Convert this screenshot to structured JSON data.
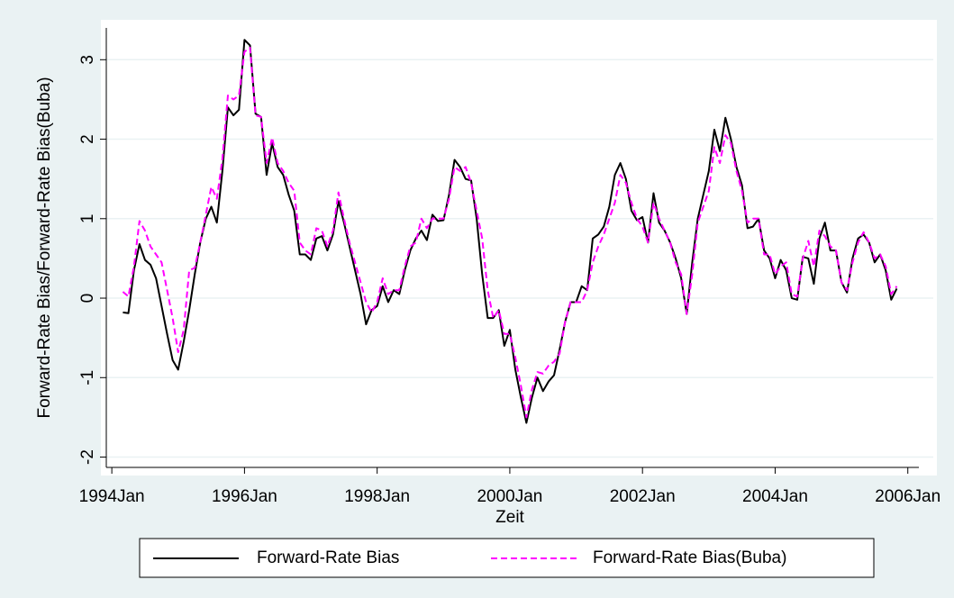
{
  "chart_data": {
    "type": "line",
    "x_label": "Zeit",
    "y_label": "Forward-Rate Bias/Forward-Rate Bias(Buba)",
    "x": [
      "1994-03",
      "1994-04",
      "1994-05",
      "1994-06",
      "1994-07",
      "1994-08",
      "1994-09",
      "1994-10",
      "1994-11",
      "1994-12",
      "1995-01",
      "1995-02",
      "1995-03",
      "1995-04",
      "1995-05",
      "1995-06",
      "1995-07",
      "1995-08",
      "1995-09",
      "1995-10",
      "1995-11",
      "1995-12",
      "1996-01",
      "1996-02",
      "1996-03",
      "1996-04",
      "1996-05",
      "1996-06",
      "1996-07",
      "1996-08",
      "1996-09",
      "1996-10",
      "1996-11",
      "1996-12",
      "1997-01",
      "1997-02",
      "1997-03",
      "1997-04",
      "1997-05",
      "1997-06",
      "1997-07",
      "1997-08",
      "1997-09",
      "1997-10",
      "1997-11",
      "1997-12",
      "1998-01",
      "1998-02",
      "1998-03",
      "1998-04",
      "1998-05",
      "1998-06",
      "1998-07",
      "1998-08",
      "1998-09",
      "1998-10",
      "1998-11",
      "1998-12",
      "1999-01",
      "1999-02",
      "1999-03",
      "1999-04",
      "1999-05",
      "1999-06",
      "1999-07",
      "1999-08",
      "1999-09",
      "1999-10",
      "1999-11",
      "1999-12",
      "2000-01",
      "2000-02",
      "2000-03",
      "2000-04",
      "2000-05",
      "2000-06",
      "2000-07",
      "2000-08",
      "2000-09",
      "2000-10",
      "2000-11",
      "2000-12",
      "2001-01",
      "2001-02",
      "2001-03",
      "2001-04",
      "2001-05",
      "2001-06",
      "2001-07",
      "2001-08",
      "2001-09",
      "2001-10",
      "2001-11",
      "2001-12",
      "2002-01",
      "2002-02",
      "2002-03",
      "2002-04",
      "2002-05",
      "2002-06",
      "2002-07",
      "2002-08",
      "2002-09",
      "2002-10",
      "2002-11",
      "2002-12",
      "2003-01",
      "2003-02",
      "2003-03",
      "2003-04",
      "2003-05",
      "2003-06",
      "2003-07",
      "2003-08",
      "2003-09",
      "2003-10",
      "2003-11",
      "2003-12",
      "2004-01",
      "2004-02",
      "2004-03",
      "2004-04",
      "2004-05",
      "2004-06",
      "2004-07",
      "2004-08",
      "2004-09",
      "2004-10",
      "2004-11",
      "2004-12",
      "2005-01",
      "2005-02",
      "2005-03",
      "2005-04",
      "2005-05",
      "2005-06",
      "2005-07",
      "2005-08",
      "2005-09",
      "2005-10",
      "2005-11"
    ],
    "series": [
      {
        "name": "Forward-Rate Bias",
        "color": "#000000",
        "dash": "solid",
        "values": [
          -0.18,
          -0.19,
          0.35,
          0.68,
          0.48,
          0.42,
          0.25,
          -0.1,
          -0.45,
          -0.78,
          -0.9,
          -0.55,
          -0.15,
          0.3,
          0.7,
          1.0,
          1.15,
          0.95,
          1.6,
          2.4,
          2.3,
          2.37,
          3.25,
          3.18,
          2.32,
          2.28,
          1.55,
          1.95,
          1.65,
          1.55,
          1.3,
          1.1,
          0.55,
          0.55,
          0.48,
          0.75,
          0.78,
          0.6,
          0.8,
          1.22,
          0.95,
          0.65,
          0.35,
          0.05,
          -0.33,
          -0.15,
          -0.1,
          0.15,
          -0.05,
          0.1,
          0.05,
          0.35,
          0.6,
          0.75,
          0.85,
          0.73,
          1.05,
          0.97,
          0.98,
          1.3,
          1.74,
          1.65,
          1.5,
          1.48,
          1.0,
          0.3,
          -0.25,
          -0.25,
          -0.15,
          -0.6,
          -0.4,
          -0.9,
          -1.25,
          -1.57,
          -1.25,
          -1.0,
          -1.17,
          -1.05,
          -0.97,
          -0.65,
          -0.3,
          -0.05,
          -0.05,
          0.15,
          0.1,
          0.75,
          0.8,
          0.9,
          1.15,
          1.55,
          1.7,
          1.5,
          1.1,
          0.98,
          1.02,
          0.7,
          1.32,
          0.95,
          0.85,
          0.7,
          0.5,
          0.25,
          -0.2,
          0.45,
          1.0,
          1.3,
          1.6,
          2.12,
          1.85,
          2.27,
          2.0,
          1.65,
          1.42,
          0.88,
          0.9,
          1.0,
          0.6,
          0.5,
          0.25,
          0.48,
          0.35,
          0.0,
          -0.02,
          0.52,
          0.5,
          0.18,
          0.75,
          0.95,
          0.6,
          0.6,
          0.2,
          0.07,
          0.5,
          0.75,
          0.8,
          0.7,
          0.45,
          0.55,
          0.35,
          -0.02,
          0.12
        ]
      },
      {
        "name": "Forward-Rate Bias(Buba)",
        "color": "#ff00ff",
        "dash": "dashed",
        "values": [
          0.08,
          0.02,
          0.4,
          0.97,
          0.85,
          0.65,
          0.55,
          0.45,
          0.1,
          -0.25,
          -0.68,
          -0.4,
          0.35,
          0.38,
          0.7,
          1.05,
          1.4,
          1.25,
          1.75,
          2.55,
          2.5,
          2.55,
          3.1,
          3.15,
          2.3,
          2.28,
          1.7,
          2.02,
          1.7,
          1.6,
          1.45,
          1.35,
          0.7,
          0.6,
          0.55,
          0.88,
          0.85,
          0.65,
          0.85,
          1.33,
          1.0,
          0.7,
          0.45,
          0.2,
          -0.05,
          -0.18,
          -0.05,
          0.25,
          0.05,
          0.1,
          0.1,
          0.4,
          0.65,
          0.7,
          1.0,
          0.88,
          1.0,
          1.0,
          1.0,
          1.25,
          1.65,
          1.6,
          1.65,
          1.45,
          1.1,
          0.75,
          0.1,
          -0.25,
          -0.15,
          -0.45,
          -0.45,
          -0.75,
          -1.1,
          -1.5,
          -1.15,
          -0.93,
          -0.95,
          -0.85,
          -0.8,
          -0.7,
          -0.3,
          -0.05,
          -0.05,
          -0.05,
          0.1,
          0.45,
          0.65,
          0.8,
          1.0,
          1.2,
          1.55,
          1.45,
          1.2,
          1.0,
          0.9,
          0.7,
          1.2,
          1.0,
          0.85,
          0.7,
          0.45,
          0.3,
          -0.2,
          0.3,
          0.95,
          1.15,
          1.35,
          1.9,
          1.7,
          2.05,
          1.95,
          1.6,
          1.35,
          0.95,
          1.0,
          1.0,
          0.55,
          0.55,
          0.3,
          0.4,
          0.45,
          0.05,
          0.02,
          0.5,
          0.72,
          0.4,
          0.85,
          0.78,
          0.65,
          0.6,
          0.2,
          0.1,
          0.45,
          0.7,
          0.83,
          0.7,
          0.5,
          0.55,
          0.4,
          0.05,
          0.15
        ]
      }
    ],
    "xlim": [
      "1993-12",
      "2006-03"
    ],
    "xticks": [
      {
        "value": "1994-01",
        "label": "1994Jan"
      },
      {
        "value": "1996-01",
        "label": "1996Jan"
      },
      {
        "value": "1998-01",
        "label": "1998Jan"
      },
      {
        "value": "2000-01",
        "label": "2000Jan"
      },
      {
        "value": "2002-01",
        "label": "2002Jan"
      },
      {
        "value": "2004-01",
        "label": "2004Jan"
      },
      {
        "value": "2006-01",
        "label": "2006Jan"
      }
    ],
    "ylim": [
      -2.13,
      3.4
    ],
    "yticks": [
      -2,
      -1,
      0,
      1,
      2,
      3
    ],
    "grid": true,
    "legend": "bottom"
  }
}
